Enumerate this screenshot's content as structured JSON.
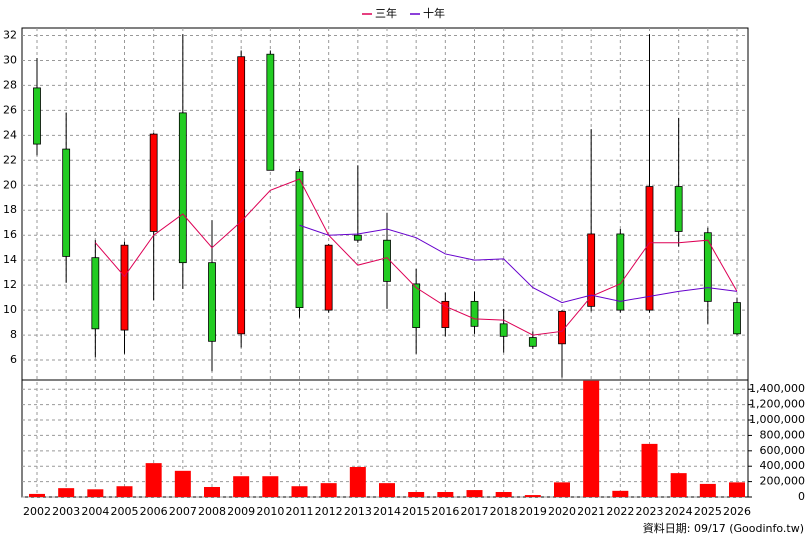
{
  "chart_data": {
    "type": "candlestick",
    "categories": [
      "2002",
      "2003",
      "2004",
      "2005",
      "2006",
      "2007",
      "2008",
      "2009",
      "2010",
      "2011",
      "2012",
      "2013",
      "2014",
      "2015",
      "2016",
      "2017",
      "2018",
      "2019",
      "2020",
      "2021",
      "2022",
      "2023",
      "2024",
      "2025",
      "2026"
    ],
    "open": [
      27.8,
      22.9,
      14.2,
      8.4,
      16.3,
      25.8,
      13.8,
      8.1,
      30.5,
      21.1,
      10.0,
      16.0,
      15.6,
      12.1,
      8.6,
      10.7,
      8.9,
      7.8,
      7.3,
      10.3,
      16.1,
      10.0,
      19.9,
      16.2,
      10.6
    ],
    "high": [
      30.2,
      25.8,
      15.6,
      15.5,
      24.2,
      32.1,
      17.2,
      30.8,
      30.8,
      21.3,
      15.3,
      21.6,
      17.8,
      13.3,
      11.4,
      11.5,
      10.1,
      8.3,
      10.0,
      24.5,
      16.5,
      32.1,
      25.4,
      16.6,
      11.0
    ],
    "low": [
      22.4,
      12.2,
      6.2,
      6.5,
      10.8,
      11.7,
      5.1,
      7.0,
      21.2,
      9.4,
      9.8,
      15.4,
      10.1,
      6.5,
      7.9,
      8.1,
      6.6,
      6.9,
      4.6,
      9.9,
      9.8,
      9.8,
      15.1,
      8.9,
      8.0
    ],
    "close": [
      23.3,
      14.3,
      8.5,
      15.2,
      24.1,
      13.8,
      7.5,
      30.3,
      21.2,
      10.2,
      15.2,
      15.6,
      12.3,
      8.6,
      10.7,
      8.7,
      7.9,
      7.1,
      9.9,
      16.1,
      10.0,
      19.9,
      16.3,
      10.7,
      8.1
    ],
    "up_color": "#ff0000",
    "down_color": "#22cc22",
    "series": [
      {
        "name": "三年",
        "color": "#dd0055",
        "values": [
          null,
          null,
          15.4,
          12.7,
          16.0,
          17.7,
          15.0,
          17.1,
          19.6,
          20.5,
          16.0,
          13.6,
          14.2,
          11.8,
          10.3,
          9.3,
          9.2,
          8.0,
          8.3,
          11.1,
          12.1,
          15.4,
          15.4,
          15.6,
          11.5
        ]
      },
      {
        "name": "十年",
        "color": "#6600cc",
        "values": [
          null,
          null,
          null,
          null,
          null,
          null,
          null,
          null,
          null,
          16.8,
          16.0,
          16.1,
          16.5,
          15.8,
          14.5,
          14.0,
          14.1,
          11.8,
          10.6,
          11.2,
          10.7,
          11.1,
          11.5,
          11.8,
          11.5
        ]
      }
    ],
    "ylim": [
      4.4,
      32.6
    ],
    "yticks": [
      6,
      8,
      10,
      12,
      14,
      16,
      18,
      20,
      22,
      24,
      26,
      28,
      30,
      32
    ],
    "grid": true,
    "volume": {
      "color": "#ff0000",
      "values": [
        40000,
        115000,
        100000,
        140000,
        440000,
        340000,
        130000,
        270000,
        270000,
        140000,
        180000,
        390000,
        180000,
        65000,
        65000,
        90000,
        65000,
        25000,
        190000,
        1510000,
        80000,
        690000,
        310000,
        170000,
        190000
      ],
      "ylim": [
        0,
        1520000
      ],
      "yticks": [
        0,
        {
          "value": 200000,
          "label": "200,000"
        },
        {
          "value": 400000,
          "label": "400,000"
        },
        {
          "value": 600000,
          "label": "600,000"
        },
        {
          "value": 800000,
          "label": "800,000"
        },
        {
          "value": 1000000,
          "label": "1,000,000"
        },
        {
          "value": 1200000,
          "label": "1,200,000"
        },
        {
          "value": 1400000,
          "label": "1,400,000"
        }
      ]
    },
    "source": "資料日期: 09/17  (Goodinfo.tw)"
  }
}
